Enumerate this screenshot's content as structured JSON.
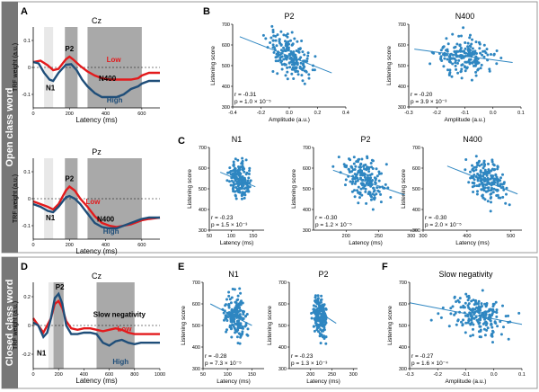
{
  "figure": {
    "rows": [
      {
        "label": "Open class word",
        "fill": "#777777"
      },
      {
        "label": "Closed class word",
        "fill": "#777777"
      }
    ]
  },
  "colors": {
    "high": "#1f4e79",
    "low": "#e31a1c",
    "scatter": "#2e86c1",
    "window_light": "#e8e8e8",
    "window_dark": "#a9a9a9"
  },
  "chart_data": [
    {
      "id": "A1",
      "panel_letter": "A",
      "type": "line",
      "title": "Cz",
      "xlabel": "Latency (ms)",
      "ylabel": "TRF weight (a.u.)",
      "xlim": [
        0,
        700
      ],
      "ylim": [
        -0.15,
        0.15
      ],
      "xticks": [
        0,
        200,
        400,
        600
      ],
      "yticks": [
        -0.1,
        0,
        0.1
      ],
      "windows": [
        {
          "x": [
            60,
            110
          ],
          "shade": "light"
        },
        {
          "x": [
            175,
            245
          ],
          "shade": "dark"
        },
        {
          "x": [
            300,
            600
          ],
          "shade": "dark"
        }
      ],
      "series": [
        {
          "name": "Low",
          "color": "red",
          "x": [
            0,
            40,
            80,
            110,
            140,
            180,
            200,
            220,
            260,
            300,
            340,
            380,
            420,
            460,
            500,
            540,
            580,
            600,
            640,
            700
          ],
          "y": [
            0.02,
            0.025,
            0.008,
            -0.01,
            -0.005,
            0.03,
            0.04,
            0.03,
            0.005,
            -0.015,
            -0.03,
            -0.04,
            -0.045,
            -0.045,
            -0.045,
            -0.045,
            -0.04,
            -0.03,
            -0.02,
            -0.02
          ]
        },
        {
          "name": "High",
          "color": "blue",
          "x": [
            0,
            30,
            60,
            90,
            110,
            140,
            180,
            210,
            240,
            270,
            300,
            340,
            380,
            420,
            460,
            500,
            540,
            580,
            600,
            640,
            700
          ],
          "y": [
            0.02,
            0.015,
            -0.02,
            -0.045,
            -0.05,
            -0.02,
            0.01,
            0.012,
            -0.01,
            -0.045,
            -0.07,
            -0.095,
            -0.11,
            -0.11,
            -0.11,
            -0.1,
            -0.08,
            -0.07,
            -0.06,
            -0.05,
            -0.05
          ]
        }
      ],
      "labels": [
        {
          "text": "N1",
          "x": 95,
          "y": -0.085,
          "color": "black"
        },
        {
          "text": "P2",
          "x": 200,
          "y": 0.06,
          "color": "black"
        },
        {
          "text": "N400",
          "x": 410,
          "y": -0.05,
          "color": "black"
        },
        {
          "text": "Low",
          "x": 445,
          "y": 0.02,
          "color": "red"
        },
        {
          "text": "High",
          "x": 450,
          "y": -0.13,
          "color": "blue"
        }
      ]
    },
    {
      "id": "A2",
      "panel_letter": "",
      "type": "line",
      "title": "Pz",
      "xlabel": "Latency (ms)",
      "ylabel": "TRF weight (a.u.)",
      "xlim": [
        0,
        700
      ],
      "ylim": [
        -0.15,
        0.15
      ],
      "xticks": [
        0,
        200,
        400,
        600
      ],
      "yticks": [
        -0.1,
        0,
        0.1
      ],
      "windows": [
        {
          "x": [
            60,
            110
          ],
          "shade": "light"
        },
        {
          "x": [
            175,
            245
          ],
          "shade": "dark"
        },
        {
          "x": [
            300,
            600
          ],
          "shade": "dark"
        }
      ],
      "series": [
        {
          "name": "Low",
          "color": "red",
          "x": [
            0,
            40,
            80,
            110,
            140,
            180,
            200,
            230,
            260,
            300,
            340,
            380,
            420,
            460,
            500,
            540,
            580,
            600,
            640,
            700
          ],
          "y": [
            -0.01,
            -0.02,
            -0.03,
            -0.04,
            -0.02,
            0.03,
            0.045,
            0.03,
            0.0,
            -0.03,
            -0.065,
            -0.09,
            -0.1,
            -0.105,
            -0.1,
            -0.095,
            -0.085,
            -0.08,
            -0.075,
            -0.07
          ]
        },
        {
          "name": "High",
          "color": "blue",
          "x": [
            0,
            40,
            80,
            110,
            140,
            180,
            200,
            230,
            260,
            300,
            340,
            380,
            420,
            460,
            500,
            540,
            580,
            600,
            640,
            700
          ],
          "y": [
            -0.02,
            -0.03,
            -0.045,
            -0.05,
            -0.03,
            0.005,
            0.01,
            0.0,
            -0.02,
            -0.055,
            -0.09,
            -0.105,
            -0.11,
            -0.11,
            -0.1,
            -0.09,
            -0.08,
            -0.075,
            -0.07,
            -0.07
          ]
        }
      ],
      "labels": [
        {
          "text": "N1",
          "x": 95,
          "y": -0.08,
          "color": "black"
        },
        {
          "text": "P2",
          "x": 200,
          "y": 0.065,
          "color": "black"
        },
        {
          "text": "N400",
          "x": 400,
          "y": -0.085,
          "color": "black"
        },
        {
          "text": "Low",
          "x": 330,
          "y": -0.02,
          "color": "red"
        },
        {
          "text": "High",
          "x": 430,
          "y": -0.13,
          "color": "blue"
        }
      ]
    },
    {
      "id": "B1",
      "panel_letter": "B",
      "type": "scatter",
      "title": "P2",
      "xlabel": "Amplitude (a.u.)",
      "ylabel": "Listening score",
      "xlim": [
        -0.4,
        0.4
      ],
      "ylim": [
        300,
        700
      ],
      "xticks": [
        -0.4,
        -0.2,
        0.0,
        0.2,
        0.4
      ],
      "xtick_labels": [
        "-0.4",
        "-0.2",
        "0.0",
        "0.2",
        "0.4"
      ],
      "yticks": [
        300,
        400,
        500,
        600,
        700
      ],
      "r": -0.31,
      "p": "1.0 × 10⁻⁵",
      "stat_lines": [
        "r = -0.31",
        "p = 1.0 × 10⁻⁵"
      ],
      "fit": [
        [
          -0.35,
          640
        ],
        [
          0.3,
          465
        ]
      ],
      "points": {
        "n": 190,
        "seed": 11,
        "x_mean": 0.0,
        "x_sd": 0.1,
        "x_range": [
          -0.35,
          0.35
        ],
        "y_mean": 545,
        "y_sd": 65,
        "y_range": [
          310,
          690
        ],
        "slope": -280
      }
    },
    {
      "id": "B2",
      "panel_letter": "",
      "type": "scatter",
      "title": "N400",
      "xlabel": "Amplitude (a.u.)",
      "ylabel": "Listening score",
      "xlim": [
        -0.3,
        0.1
      ],
      "ylim": [
        300,
        700
      ],
      "xticks": [
        -0.3,
        -0.2,
        -0.1,
        0.0,
        0.1
      ],
      "xtick_labels": [
        "-0.3",
        "-0.2",
        "-0.1",
        "0.0",
        "0.1"
      ],
      "yticks": [
        300,
        400,
        500,
        600,
        700
      ],
      "r": -0.2,
      "p": "3.9 × 10⁻³",
      "stat_lines": [
        "r = -0.20",
        "p = 3.9 × 10⁻³"
      ],
      "fit": [
        [
          -0.28,
          580
        ],
        [
          0.07,
          515
        ]
      ],
      "points": {
        "n": 190,
        "seed": 23,
        "x_mean": -0.1,
        "x_sd": 0.07,
        "x_range": [
          -0.28,
          0.08
        ],
        "y_mean": 545,
        "y_sd": 65,
        "y_range": [
          310,
          690
        ],
        "slope": -190
      }
    },
    {
      "id": "C1",
      "panel_letter": "C",
      "type": "scatter",
      "title": "N1",
      "xlabel": "Latency (ms)",
      "ylabel": "Listening score",
      "xlim": [
        50,
        175
      ],
      "ylim": [
        300,
        700
      ],
      "xticks": [
        50,
        100,
        150
      ],
      "xtick_labels": [
        "50",
        "100",
        "150"
      ],
      "yticks": [
        300,
        400,
        500,
        600,
        700
      ],
      "r": -0.23,
      "p": "1.5 × 10⁻³",
      "stat_lines": [
        "r = -0.23",
        "p = 1.5 × 10⁻³"
      ],
      "fit": [
        [
          75,
          580
        ],
        [
          155,
          510
        ]
      ],
      "points": {
        "n": 180,
        "seed": 37,
        "x_mean": 120,
        "x_sd": 15,
        "x_range": [
          75,
          155
        ],
        "y_mean": 545,
        "y_sd": 65,
        "y_range": [
          310,
          690
        ],
        "slope": -0.9
      }
    },
    {
      "id": "C2",
      "panel_letter": "",
      "type": "scatter",
      "title": "P2",
      "xlabel": "Latency (ms)",
      "ylabel": "Listening score",
      "xlim": [
        150,
        310
      ],
      "ylim": [
        300,
        700
      ],
      "xticks": [
        200,
        250,
        300
      ],
      "xtick_labels": [
        "200",
        "250",
        "300"
      ],
      "yticks": [
        300,
        400,
        500,
        600,
        700
      ],
      "r": -0.3,
      "p": "1.2 × 10⁻⁵",
      "stat_lines": [
        "r = -0.30",
        "p = 1.2 × 10⁻⁵"
      ],
      "fit": [
        [
          180,
          590
        ],
        [
          290,
          470
        ]
      ],
      "points": {
        "n": 180,
        "seed": 41,
        "x_mean": 228,
        "x_sd": 22,
        "x_range": [
          180,
          295
        ],
        "y_mean": 545,
        "y_sd": 65,
        "y_range": [
          310,
          690
        ],
        "slope": -1.1
      }
    },
    {
      "id": "C3",
      "panel_letter": "",
      "type": "scatter",
      "title": "N400",
      "xlabel": "Latency (ms)",
      "ylabel": "Listening score",
      "xlim": [
        300,
        525
      ],
      "ylim": [
        300,
        700
      ],
      "xticks": [
        300,
        400,
        500
      ],
      "xtick_labels": [
        "300",
        "400",
        "500"
      ],
      "yticks": [
        300,
        400,
        500,
        600,
        700
      ],
      "r": -0.3,
      "p": "2.0 × 10⁻⁵",
      "stat_lines": [
        "r = -0.30",
        "p = 2.0 × 10⁻⁵"
      ],
      "fit": [
        [
          355,
          610
        ],
        [
          515,
          475
        ]
      ],
      "points": {
        "n": 180,
        "seed": 53,
        "x_mean": 445,
        "x_sd": 30,
        "x_range": [
          360,
          515
        ],
        "y_mean": 545,
        "y_sd": 65,
        "y_range": [
          310,
          690
        ],
        "slope": -0.85
      }
    },
    {
      "id": "D1",
      "panel_letter": "D",
      "type": "line",
      "title": "Cz",
      "xlabel": "Latency (ms)",
      "ylabel": "TRF weight (a.u.)",
      "xlim": [
        0,
        1000
      ],
      "ylim": [
        -0.3,
        0.3
      ],
      "xticks": [
        0,
        200,
        400,
        600,
        800,
        1000
      ],
      "yticks": [
        -0.2,
        0,
        0.2
      ],
      "windows": [
        {
          "x": [
            120,
            160
          ],
          "shade": "light"
        },
        {
          "x": [
            160,
            240
          ],
          "shade": "dark"
        },
        {
          "x": [
            500,
            800
          ],
          "shade": "dark"
        }
      ],
      "series": [
        {
          "name": "Low",
          "color": "red",
          "x": [
            0,
            40,
            80,
            110,
            140,
            170,
            200,
            230,
            260,
            300,
            350,
            400,
            450,
            500,
            550,
            600,
            650,
            700,
            750,
            800,
            850,
            900,
            1000
          ],
          "y": [
            0.05,
            0.0,
            -0.05,
            0.0,
            0.05,
            0.15,
            0.17,
            0.12,
            0.03,
            -0.02,
            -0.03,
            -0.02,
            -0.02,
            -0.03,
            -0.04,
            -0.03,
            -0.02,
            -0.03,
            -0.05,
            -0.06,
            -0.06,
            -0.06,
            -0.06
          ]
        },
        {
          "name": "High",
          "color": "blue",
          "x": [
            0,
            40,
            80,
            110,
            140,
            170,
            200,
            230,
            260,
            300,
            350,
            400,
            450,
            500,
            550,
            600,
            650,
            700,
            750,
            800,
            850,
            900,
            1000
          ],
          "y": [
            0.02,
            0.0,
            -0.08,
            -0.05,
            0.05,
            0.19,
            0.22,
            0.15,
            0.0,
            -0.06,
            -0.06,
            -0.05,
            -0.05,
            -0.06,
            -0.12,
            -0.14,
            -0.11,
            -0.1,
            -0.12,
            -0.13,
            -0.12,
            -0.12,
            -0.12
          ]
        }
      ],
      "labels": [
        {
          "text": "N1",
          "x": 65,
          "y": -0.21,
          "color": "black"
        },
        {
          "text": "P2",
          "x": 210,
          "y": 0.25,
          "color": "black"
        },
        {
          "text": "Slow negativity",
          "x": 680,
          "y": 0.06,
          "color": "black"
        },
        {
          "text": "Low",
          "x": 720,
          "y": -0.04,
          "color": "red"
        },
        {
          "text": "High",
          "x": 690,
          "y": -0.27,
          "color": "blue"
        }
      ]
    },
    {
      "id": "E1",
      "panel_letter": "E",
      "type": "scatter",
      "title": "N1",
      "xlabel": "Latency (ms)",
      "ylabel": "Listening score",
      "xlim": [
        50,
        175
      ],
      "ylim": [
        300,
        700
      ],
      "xticks": [
        50,
        100,
        150
      ],
      "xtick_labels": [
        "50",
        "100",
        "150"
      ],
      "yticks": [
        300,
        400,
        500,
        600,
        700
      ],
      "r": -0.28,
      "p": "7.3 × 10⁻⁵",
      "stat_lines": [
        "r = -0.28",
        "p = 7.3 × 10⁻⁵"
      ],
      "fit": [
        [
          65,
          600
        ],
        [
          150,
          500
        ]
      ],
      "points": {
        "n": 180,
        "seed": 67,
        "x_mean": 118,
        "x_sd": 16,
        "x_range": [
          70,
          155
        ],
        "y_mean": 545,
        "y_sd": 65,
        "y_range": [
          310,
          690
        ],
        "slope": -1.1
      }
    },
    {
      "id": "E2",
      "panel_letter": "",
      "type": "scatter",
      "title": "P2",
      "xlabel": "Latency (ms)",
      "ylabel": "Listening score",
      "xlim": [
        150,
        310
      ],
      "ylim": [
        300,
        700
      ],
      "xticks": [
        200,
        250,
        300
      ],
      "xtick_labels": [
        "200",
        "250",
        "300"
      ],
      "yticks": [
        300,
        400,
        500,
        600,
        700
      ],
      "r": -0.23,
      "p": "1.3 × 10⁻³",
      "stat_lines": [
        "r = -0.23",
        "p = 1.3 × 10⁻³"
      ],
      "fit": [
        [
          205,
          580
        ],
        [
          260,
          510
        ]
      ],
      "points": {
        "n": 180,
        "seed": 79,
        "x_mean": 222,
        "x_sd": 12,
        "x_range": [
          200,
          262
        ],
        "y_mean": 545,
        "y_sd": 65,
        "y_range": [
          310,
          690
        ],
        "slope": -1.3
      }
    },
    {
      "id": "F1",
      "panel_letter": "F",
      "type": "scatter",
      "title": "Slow negativity",
      "xlabel": "Amplitude (a.u.)",
      "ylabel": "Listening score",
      "xlim": [
        -0.3,
        0.1
      ],
      "ylim": [
        300,
        700
      ],
      "xticks": [
        -0.3,
        -0.2,
        -0.1,
        0.0,
        0.1
      ],
      "xtick_labels": [
        "-0.3",
        "-0.2",
        "-0.1",
        "0.0",
        "0.1"
      ],
      "yticks": [
        300,
        400,
        500,
        600,
        700
      ],
      "r": -0.27,
      "p": "1.6 × 10⁻⁴",
      "stat_lines": [
        "r = -0.27",
        "p = 1.6 × 10⁻⁴"
      ],
      "fit": [
        [
          -0.3,
          605
        ],
        [
          0.1,
          505
        ]
      ],
      "points": {
        "n": 190,
        "seed": 97,
        "x_mean": -0.06,
        "x_sd": 0.07,
        "x_range": [
          -0.28,
          0.09
        ],
        "y_mean": 545,
        "y_sd": 65,
        "y_range": [
          310,
          690
        ],
        "slope": -240
      }
    }
  ]
}
